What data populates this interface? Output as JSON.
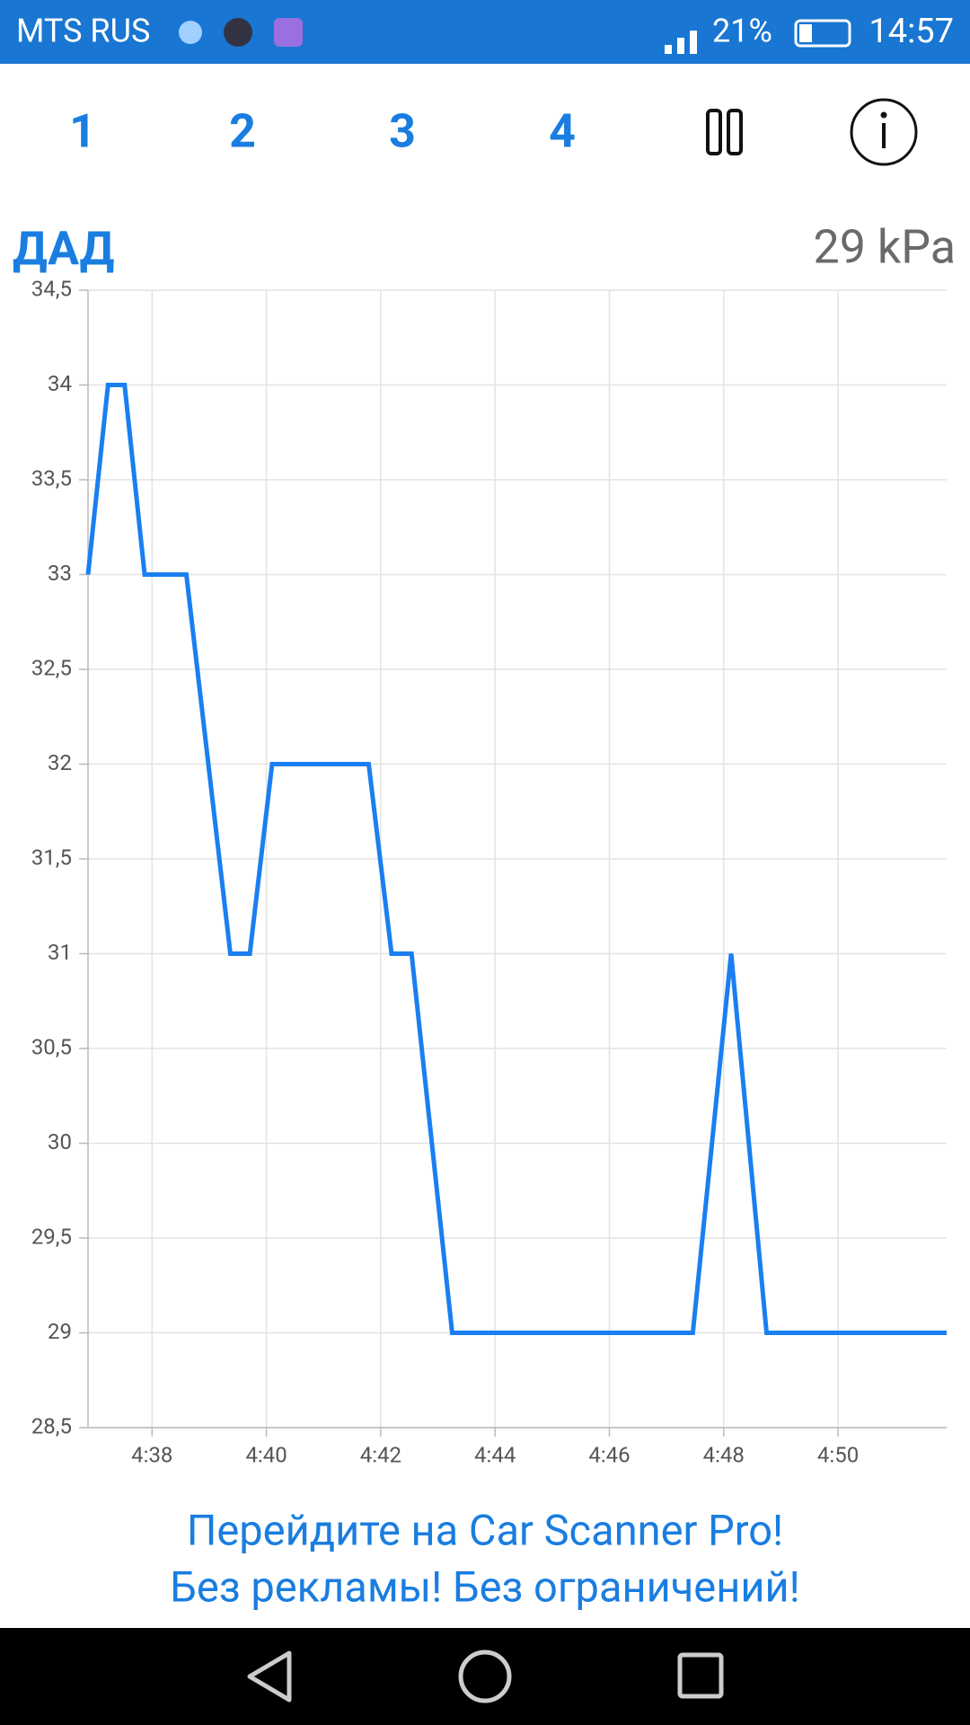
{
  "status_bar": {
    "carrier": "MTS RUS",
    "battery": "21%",
    "time": "14:57"
  },
  "tabs": [
    "1",
    "2",
    "3",
    "4"
  ],
  "chart_data": {
    "type": "line",
    "title": "ДАД",
    "current_value": "29 kPa",
    "xlim": [
      36.88,
      51.9
    ],
    "xticks": [
      {
        "value": 38,
        "label": "4:38"
      },
      {
        "value": 40,
        "label": "4:40"
      },
      {
        "value": 42,
        "label": "4:42"
      },
      {
        "value": 44,
        "label": "4:44"
      },
      {
        "value": 46,
        "label": "4:46"
      },
      {
        "value": 48,
        "label": "4:48"
      },
      {
        "value": 50,
        "label": "4:50"
      }
    ],
    "ylim": [
      28.5,
      34.5
    ],
    "yticks": [
      {
        "value": 28.5,
        "label": "28,5"
      },
      29,
      {
        "value": 29.5,
        "label": "29,5"
      },
      30,
      {
        "value": 30.5,
        "label": "30,5"
      },
      31,
      {
        "value": 31.5,
        "label": "31,5"
      },
      32,
      {
        "value": 32.5,
        "label": "32,5"
      },
      33,
      {
        "value": 33.5,
        "label": "33,5"
      },
      34,
      {
        "value": 34.5,
        "label": "34,5"
      }
    ],
    "grid": true,
    "x": [
      36.88,
      37.23,
      37.52,
      37.87,
      38.6,
      39.37,
      39.71,
      40.1,
      41.79,
      42.19,
      42.54,
      43.25,
      47.46,
      48.13,
      48.75,
      51.9
    ],
    "series": [
      {
        "color": "#1a7ff0",
        "values": [
          33,
          34,
          34,
          33,
          33,
          31,
          31,
          32,
          32,
          31,
          31,
          29,
          29,
          31,
          29,
          29
        ]
      }
    ]
  },
  "promo": [
    "Перейдите на Car Scanner Pro!",
    "Без рекламы! Без ограничений!"
  ]
}
